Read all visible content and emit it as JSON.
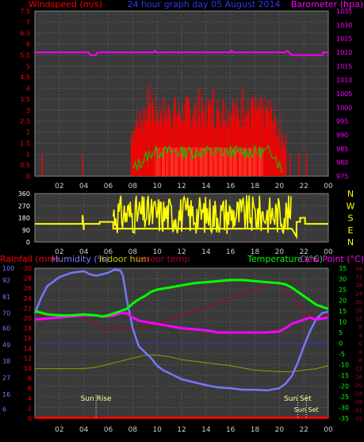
{
  "title": "24 hour graph day  05 August 2014",
  "colors": {
    "wind": "#ff0000",
    "gust_fill": "#ccffcc",
    "wind_avg": "#00cc00",
    "baro": "#ff00ff",
    "dir": "#ffff00",
    "rain": "#ff0000",
    "humidity": "#7777ff",
    "indoor_hum": "#999900",
    "indoor_temp": "#aa0033",
    "temperature": "#00ff00",
    "dewpoint": "#ff00ff",
    "grid": "#666666",
    "panel_bg": "#3a3a3a"
  },
  "x_ticks": [
    "02",
    "04",
    "06",
    "08",
    "10",
    "12",
    "14",
    "16",
    "18",
    "20",
    "22",
    "00"
  ],
  "chart_data": [
    {
      "type": "bar",
      "name": "wind-panel",
      "left_label": "Windspeed (m/s)",
      "right_label": "Barometer (hpa)",
      "left_ticks": [
        "0",
        "0.5",
        "1",
        "1.5",
        "2",
        "2.5",
        "3",
        "3.5",
        "4",
        "4.5",
        "5",
        "5.5",
        "6",
        "6.5",
        "7",
        "7.5"
      ],
      "left_ylim": [
        0,
        7.5
      ],
      "right_ticks": [
        "975",
        "980",
        "985",
        "990",
        "995",
        "1000",
        "1005",
        "1010",
        "1015",
        "1020",
        "1025",
        "1030",
        "1035"
      ],
      "right_ylim": [
        975,
        1035
      ],
      "wind_gusts": [
        {
          "x": 0.6,
          "v": 1
        },
        {
          "x": 3.9,
          "v": 1
        },
        {
          "x": 7.9,
          "v": 1.7
        },
        {
          "x": 8.1,
          "v": 2
        },
        {
          "x": 8.3,
          "v": 2.5
        },
        {
          "x": 8.6,
          "v": 2
        },
        {
          "x": 9.0,
          "v": 2.5
        },
        {
          "x": 9.3,
          "v": 3
        },
        {
          "x": 9.6,
          "v": 3.5
        },
        {
          "x": 9.9,
          "v": 2.5
        },
        {
          "x": 10.3,
          "v": 3
        },
        {
          "x": 10.7,
          "v": 2.5
        },
        {
          "x": 11.0,
          "v": 3
        },
        {
          "x": 11.4,
          "v": 3.5
        },
        {
          "x": 11.8,
          "v": 3
        },
        {
          "x": 12.2,
          "v": 2.5
        },
        {
          "x": 12.6,
          "v": 3.5
        },
        {
          "x": 13.0,
          "v": 3
        },
        {
          "x": 13.4,
          "v": 4
        },
        {
          "x": 13.8,
          "v": 3
        },
        {
          "x": 14.2,
          "v": 3.5
        },
        {
          "x": 14.6,
          "v": 4
        },
        {
          "x": 15.0,
          "v": 3
        },
        {
          "x": 15.4,
          "v": 3.5
        },
        {
          "x": 15.8,
          "v": 3
        },
        {
          "x": 16.2,
          "v": 3.5
        },
        {
          "x": 16.6,
          "v": 3
        },
        {
          "x": 17.0,
          "v": 4
        },
        {
          "x": 17.4,
          "v": 3
        },
        {
          "x": 17.8,
          "v": 3.5
        },
        {
          "x": 18.2,
          "v": 3
        },
        {
          "x": 18.6,
          "v": 2.5
        },
        {
          "x": 19.0,
          "v": 3
        },
        {
          "x": 19.4,
          "v": 2.5
        },
        {
          "x": 19.8,
          "v": 2
        },
        {
          "x": 20.3,
          "v": 1.5
        },
        {
          "x": 20.9,
          "v": 1
        },
        {
          "x": 21.6,
          "v": 1
        },
        {
          "x": 22.2,
          "v": 1
        }
      ],
      "wind_fill_range": [
        9.8,
        18.7
      ],
      "wind_fill_level": 1.3,
      "baro": [
        [
          0,
          1020
        ],
        [
          4.4,
          1020
        ],
        [
          4.5,
          1019
        ],
        [
          5,
          1019
        ],
        [
          5.1,
          1020
        ],
        [
          9.7,
          1020
        ],
        [
          9.8,
          1020.6
        ],
        [
          9.9,
          1020
        ],
        [
          16.0,
          1020
        ],
        [
          16.1,
          1020.6
        ],
        [
          16.2,
          1020
        ],
        [
          20.5,
          1020
        ],
        [
          20.6,
          1020.6
        ],
        [
          20.8,
          1020
        ],
        [
          21.0,
          1019
        ],
        [
          23.5,
          1019
        ],
        [
          23.6,
          1020
        ],
        [
          24,
          1020
        ]
      ]
    },
    {
      "type": "line",
      "name": "direction-panel",
      "left_ticks": [
        "0",
        "90",
        "180",
        "270",
        "360"
      ],
      "ylim": [
        0,
        360
      ],
      "right_labels": [
        "N",
        "W",
        "S",
        "E",
        "N"
      ],
      "direction_segments": [
        [
          0,
          135
        ],
        [
          3.9,
          135
        ],
        [
          3.9,
          200
        ],
        [
          4.0,
          90
        ],
        [
          4.0,
          135
        ],
        [
          5.3,
          135
        ],
        [
          5.3,
          150
        ],
        [
          6.4,
          150
        ],
        [
          6.4,
          100
        ],
        [
          21.0,
          100
        ],
        [
          21.4,
          40
        ],
        [
          21.4,
          150
        ],
        [
          21.7,
          150
        ],
        [
          21.7,
          180
        ],
        [
          22.1,
          180
        ],
        [
          22.1,
          135
        ],
        [
          24,
          135
        ]
      ],
      "direction_noise_range": [
        6.4,
        21.0
      ]
    },
    {
      "type": "line",
      "name": "temp-panel",
      "labels": [
        "Rainfall (mm)",
        "Humidity (%)",
        "Indoor hum",
        "Indoor temp",
        "Temperature (°C)",
        "Dew Point (°C)"
      ],
      "humidity_ticks": [
        "6",
        "16",
        "27",
        "38",
        "49",
        "60",
        "70",
        "81",
        "92",
        "100"
      ],
      "rain_ticks": [
        "0",
        "2",
        "4",
        "6",
        "8",
        "10",
        "12",
        "14",
        "16",
        "18",
        "20",
        "22",
        "24",
        "26",
        "28",
        "30"
      ],
      "temp_ticks": [
        "-35",
        "-30",
        "-25",
        "-20",
        "-15",
        "-10",
        "-5",
        "0",
        "5",
        "10",
        "15",
        "20",
        "25",
        "30",
        "35"
      ],
      "indoor_ticks": [
        "-35",
        "-31",
        "-28",
        "-24",
        "-20",
        "-16",
        "-12",
        "-8",
        "-4",
        "0",
        "4",
        "8",
        "12",
        "16",
        "20",
        "24",
        "28",
        "32",
        "34"
      ],
      "ylim_temp": [
        -35,
        35
      ],
      "humidity": [
        [
          0,
          70
        ],
        [
          0.5,
          80
        ],
        [
          1,
          88
        ],
        [
          2,
          94
        ],
        [
          3,
          97
        ],
        [
          4,
          98
        ],
        [
          4.5,
          96
        ],
        [
          5,
          95
        ],
        [
          5.5,
          96
        ],
        [
          6,
          97
        ],
        [
          6.5,
          99
        ],
        [
          7,
          98.5
        ],
        [
          7.2,
          95
        ],
        [
          7.5,
          80
        ],
        [
          8,
          60
        ],
        [
          8.5,
          48
        ],
        [
          9,
          44
        ],
        [
          9.5,
          40
        ],
        [
          10,
          35
        ],
        [
          10.5,
          32
        ],
        [
          11,
          30
        ],
        [
          12,
          26
        ],
        [
          13,
          24
        ],
        [
          14,
          22
        ],
        [
          15,
          20.5
        ],
        [
          16,
          20
        ],
        [
          17,
          19
        ],
        [
          18,
          19
        ],
        [
          19,
          18.5
        ],
        [
          20,
          20
        ],
        [
          20.5,
          23
        ],
        [
          21,
          28
        ],
        [
          21.5,
          37
        ],
        [
          22,
          48
        ],
        [
          22.5,
          58
        ],
        [
          23,
          66
        ],
        [
          23.5,
          70
        ],
        [
          24,
          71
        ]
      ],
      "temperature": [
        [
          0,
          15
        ],
        [
          1,
          13.5
        ],
        [
          2,
          13
        ],
        [
          3,
          13
        ],
        [
          4,
          13.5
        ],
        [
          5,
          13
        ],
        [
          5.5,
          12.5
        ],
        [
          6,
          13
        ],
        [
          6.5,
          14
        ],
        [
          7,
          15
        ],
        [
          7.5,
          16
        ],
        [
          8,
          18.5
        ],
        [
          8.5,
          20.5
        ],
        [
          9,
          22
        ],
        [
          9.5,
          24
        ],
        [
          10,
          25
        ],
        [
          11,
          26
        ],
        [
          12,
          27
        ],
        [
          13,
          28
        ],
        [
          14,
          28.5
        ],
        [
          15,
          29
        ],
        [
          16,
          29.5
        ],
        [
          17,
          29.5
        ],
        [
          18,
          29
        ],
        [
          19,
          28.5
        ],
        [
          20,
          28
        ],
        [
          20.5,
          27.5
        ],
        [
          21,
          26
        ],
        [
          21.5,
          24
        ],
        [
          22,
          22
        ],
        [
          22.5,
          20
        ],
        [
          23,
          18
        ],
        [
          23.5,
          17
        ],
        [
          24,
          16
        ]
      ],
      "dewpoint": [
        [
          0,
          11
        ],
        [
          1,
          11.5
        ],
        [
          2,
          12
        ],
        [
          3,
          12.5
        ],
        [
          4,
          13
        ],
        [
          5,
          13
        ],
        [
          5.5,
          12.5
        ],
        [
          6,
          12.5
        ],
        [
          6.5,
          13
        ],
        [
          7,
          14
        ],
        [
          7.5,
          14
        ],
        [
          8,
          12
        ],
        [
          8.5,
          10.5
        ],
        [
          9,
          10
        ],
        [
          9.5,
          9.5
        ],
        [
          10,
          9
        ],
        [
          11,
          8
        ],
        [
          12,
          7
        ],
        [
          13,
          6.5
        ],
        [
          14,
          6
        ],
        [
          15,
          5
        ],
        [
          16,
          5
        ],
        [
          17,
          5
        ],
        [
          18,
          5
        ],
        [
          19,
          5
        ],
        [
          20,
          5.5
        ],
        [
          20.5,
          7
        ],
        [
          21,
          9
        ],
        [
          21.5,
          10
        ],
        [
          22,
          11
        ],
        [
          22.5,
          12
        ],
        [
          23,
          11
        ],
        [
          23.5,
          11.5
        ],
        [
          24,
          12
        ]
      ],
      "indoor_temp": [
        [
          0,
          13.5
        ],
        [
          1,
          13
        ],
        [
          2,
          13
        ],
        [
          3,
          12.5
        ],
        [
          4,
          12
        ],
        [
          4.5,
          10
        ],
        [
          5,
          9.5
        ],
        [
          5.5,
          6
        ],
        [
          6,
          6
        ],
        [
          6.5,
          7
        ],
        [
          7,
          6.5
        ],
        [
          8,
          7
        ],
        [
          9,
          7.5
        ],
        [
          10,
          9
        ],
        [
          11,
          11
        ],
        [
          12,
          13
        ],
        [
          13,
          15
        ],
        [
          14,
          17
        ],
        [
          15,
          19
        ],
        [
          16,
          21
        ],
        [
          17,
          23
        ],
        [
          18,
          25
        ],
        [
          19,
          27
        ],
        [
          19.5,
          28
        ],
        [
          20,
          27.5
        ],
        [
          20.5,
          25
        ],
        [
          21,
          22
        ],
        [
          21.5,
          18
        ],
        [
          22,
          15
        ],
        [
          22.5,
          13
        ],
        [
          23,
          13
        ],
        [
          24,
          13.5
        ]
      ],
      "indoor_hum": [
        [
          0,
          33
        ],
        [
          4,
          33
        ],
        [
          5,
          34
        ],
        [
          6,
          36
        ],
        [
          7,
          38
        ],
        [
          8,
          40
        ],
        [
          9,
          42
        ],
        [
          10,
          42
        ],
        [
          11,
          41
        ],
        [
          12,
          39
        ],
        [
          14,
          37
        ],
        [
          16,
          35
        ],
        [
          18,
          32
        ],
        [
          20,
          31
        ],
        [
          21,
          31
        ],
        [
          22,
          32
        ],
        [
          23,
          33
        ],
        [
          24,
          35
        ]
      ],
      "rain": [
        [
          0,
          0.1
        ],
        [
          24,
          0.1
        ]
      ],
      "markers": [
        {
          "x": 5.0,
          "label": "Sun Rise"
        },
        {
          "x": 21.5,
          "label": "Sun Set"
        },
        {
          "x": 22.2,
          "label": "Sun Set"
        }
      ]
    }
  ]
}
